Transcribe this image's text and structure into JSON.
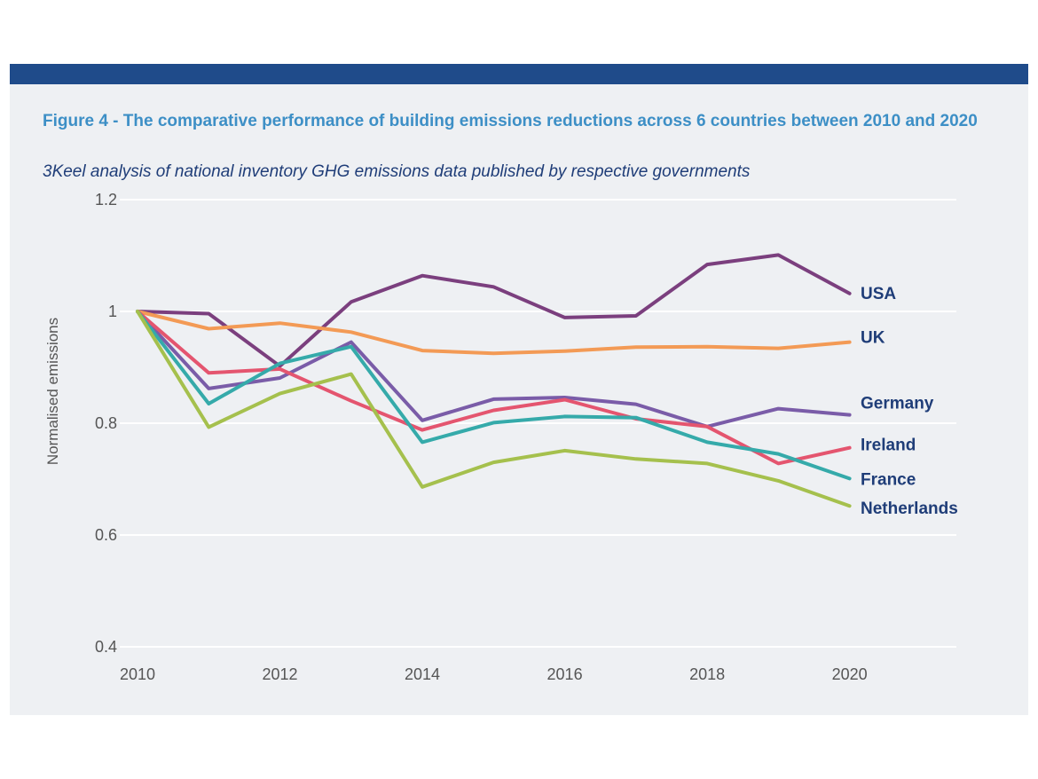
{
  "header": {
    "title": "Figure 4 - The comparative performance of building emissions reductions across 6 countries between 2010 and 2020",
    "subtitle": "3Keel analysis of national inventory GHG emissions data published by respective governments"
  },
  "colors": {
    "top_bar": "#1f4b8a",
    "panel_background": "#eef0f3",
    "title": "#3d8fc6",
    "subtitle": "#1f3d78",
    "series_label": "#1f3d78",
    "grid": "#ffffff"
  },
  "chart_data": {
    "type": "line",
    "ylabel": "Normalised emissions",
    "xlabel": "",
    "ylim": [
      0.4,
      1.2
    ],
    "xlim": [
      2010,
      2021.5
    ],
    "y_ticks": [
      "0.4",
      "0.6",
      "0.8",
      "1",
      "1.2"
    ],
    "x_ticks": [
      "2010",
      "2012",
      "2014",
      "2016",
      "2018",
      "2020"
    ],
    "grid": "horizontal",
    "legend": "series labels at right end of lines",
    "x": [
      2010,
      2011,
      2012,
      2013,
      2014,
      2015,
      2016,
      2017,
      2018,
      2019,
      2020
    ],
    "series": [
      {
        "name": "USA",
        "color": "#7b3f7e",
        "values": [
          1.0,
          0.996,
          0.902,
          1.017,
          1.064,
          1.044,
          0.989,
          0.992,
          1.084,
          1.101,
          1.032
        ]
      },
      {
        "name": "UK",
        "color": "#f39a55",
        "values": [
          1.0,
          0.969,
          0.979,
          0.963,
          0.93,
          0.925,
          0.929,
          0.936,
          0.937,
          0.934,
          0.945
        ]
      },
      {
        "name": "Germany",
        "color": "#7a5ca8",
        "values": [
          1.0,
          0.862,
          0.881,
          0.945,
          0.805,
          0.843,
          0.846,
          0.834,
          0.794,
          0.826,
          0.815
        ]
      },
      {
        "name": "Ireland",
        "color": "#e4556f",
        "values": [
          1.0,
          0.89,
          0.897,
          0.84,
          0.788,
          0.823,
          0.842,
          0.808,
          0.794,
          0.728,
          0.756
        ]
      },
      {
        "name": "France",
        "color": "#35aaaa",
        "values": [
          1.0,
          0.835,
          0.907,
          0.937,
          0.766,
          0.801,
          0.812,
          0.81,
          0.766,
          0.745,
          0.701
        ]
      },
      {
        "name": "Netherlands",
        "color": "#a5c04d",
        "values": [
          1.0,
          0.793,
          0.853,
          0.888,
          0.686,
          0.73,
          0.751,
          0.736,
          0.728,
          0.697,
          0.652
        ]
      }
    ]
  }
}
